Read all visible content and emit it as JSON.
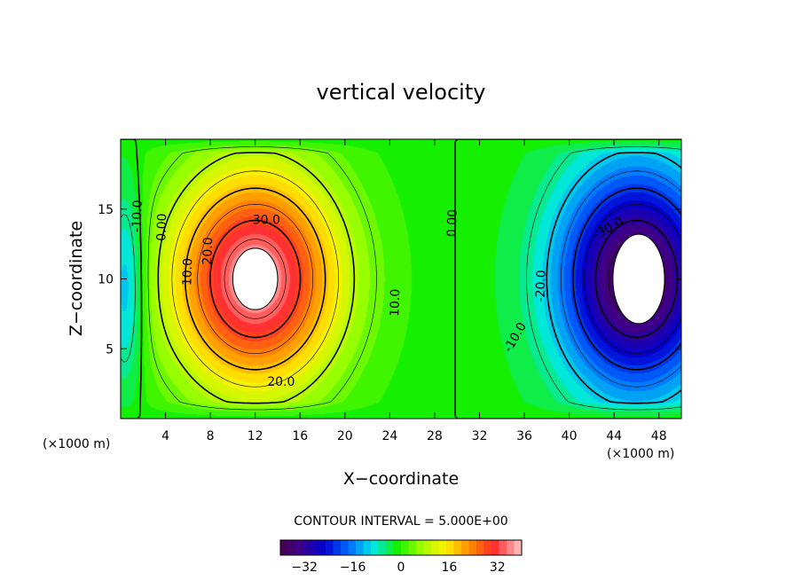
{
  "chart_data": {
    "type": "heatmap",
    "title": "vertical velocity",
    "xlabel": "X−coordinate",
    "ylabel": "Z−coordinate",
    "x_unit": "(×1000 m)",
    "y_unit": "(×1000 m)",
    "xlim": [
      0,
      50
    ],
    "ylim": [
      0,
      20
    ],
    "x_ticks": [
      4,
      8,
      12,
      16,
      20,
      24,
      28,
      32,
      36,
      40,
      44,
      48
    ],
    "y_ticks": [
      5,
      10,
      15
    ],
    "contour_interval": "CONTOUR INTERVAL = 5.000E+00",
    "colorbar": {
      "range": [
        -40,
        40
      ],
      "ticks": [
        -32,
        -16,
        0,
        16,
        32
      ],
      "tick_labels": [
        "−32",
        "−16",
        "0",
        "16",
        "32"
      ]
    },
    "features": [
      {
        "name": "updraft",
        "x_center": 12,
        "z_center": 10,
        "peak": 40
      },
      {
        "name": "downdraft",
        "x_center": 46,
        "z_center": 10,
        "peak": -40
      }
    ],
    "contour_labels": [
      {
        "text": "30.0",
        "x": 13,
        "z": 14.2,
        "rot": 0
      },
      {
        "text": "20.0",
        "x": 7.8,
        "z": 12.0,
        "rot": -88
      },
      {
        "text": "10.0",
        "x": 6.0,
        "z": 10.5,
        "rot": -88
      },
      {
        "text": "0.00",
        "x": 3.7,
        "z": 13.7,
        "rot": -88
      },
      {
        "text": "-10.0",
        "x": 1.5,
        "z": 14.5,
        "rot": -88
      },
      {
        "text": "20.0",
        "x": 14.3,
        "z": 2.6,
        "rot": 0
      },
      {
        "text": "10.0",
        "x": 24.5,
        "z": 8.3,
        "rot": -88
      },
      {
        "text": "0.00",
        "x": 29.6,
        "z": 14.0,
        "rot": -88
      },
      {
        "text": "-20.0",
        "x": 37.5,
        "z": 9.5,
        "rot": -88
      },
      {
        "text": "-10.0",
        "x": 35.2,
        "z": 5.8,
        "rot": -60
      },
      {
        "text": "-30.0",
        "x": 43.5,
        "z": 13.6,
        "rot": -30
      }
    ]
  }
}
